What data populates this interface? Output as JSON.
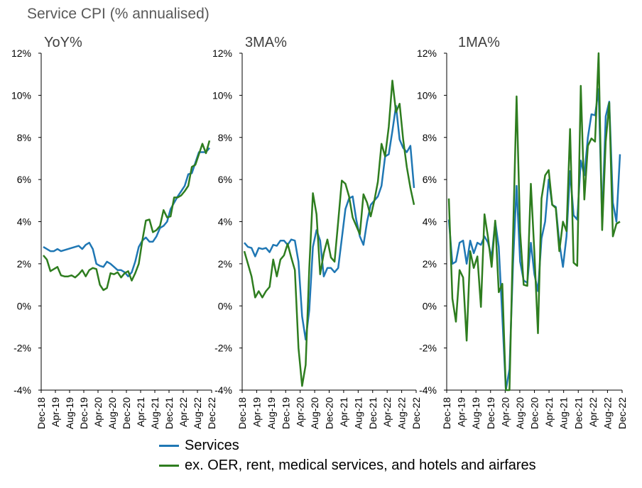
{
  "title": "Service CPI (% annualised)",
  "legend": [
    {
      "name": "Services",
      "color": "#1f77b4"
    },
    {
      "name": "ex. OER, rent, medical services, and hotels and airfares",
      "color": "#2e7d1f"
    }
  ],
  "chart_data": [
    {
      "type": "line",
      "title": "YoY%",
      "x_ticks": [
        "Dec-18",
        "Apr-19",
        "Aug-19",
        "Dec-19",
        "Apr-20",
        "Aug-20",
        "Dec-20",
        "Apr-21",
        "Aug-21",
        "Dec-21",
        "Apr-22",
        "Aug-22",
        "Dec-22"
      ],
      "y_ticks": [
        "12%",
        "10%",
        "8%",
        "6%",
        "4%",
        "2%",
        "0%",
        "-2%",
        "-4%"
      ],
      "ylim": [
        -4,
        12
      ],
      "grid": false,
      "series": [
        {
          "name": "Services",
          "color": "#1f77b4",
          "values": [
            2.8,
            2.7,
            2.6,
            2.6,
            2.7,
            2.6,
            2.65,
            2.7,
            2.75,
            2.8,
            2.85,
            2.7,
            2.9,
            3.0,
            2.7,
            2.0,
            1.9,
            1.85,
            2.1,
            2.0,
            1.85,
            1.7,
            1.7,
            1.6,
            1.4,
            1.6,
            2.1,
            2.8,
            3.1,
            3.25,
            3.05,
            3.05,
            3.3,
            3.7,
            3.8,
            4.0,
            4.6,
            4.9,
            5.2,
            5.45,
            5.7,
            6.25,
            6.3,
            6.8,
            7.3,
            7.3,
            7.3,
            7.5
          ]
        },
        {
          "name": "ex. OER, rent, medical services, and hotels and airfares",
          "color": "#2e7d1f",
          "values": [
            2.4,
            2.2,
            1.65,
            1.75,
            1.85,
            1.45,
            1.4,
            1.4,
            1.45,
            1.35,
            1.5,
            1.7,
            1.4,
            1.7,
            1.8,
            1.75,
            1.0,
            0.75,
            0.85,
            1.55,
            1.5,
            1.6,
            1.35,
            1.55,
            1.65,
            1.2,
            1.55,
            2.0,
            3.1,
            4.05,
            4.1,
            3.5,
            3.6,
            3.8,
            4.55,
            4.2,
            4.25,
            5.15,
            5.15,
            5.25,
            5.45,
            5.7,
            6.6,
            6.7,
            7.2,
            7.7,
            7.25,
            7.85
          ]
        }
      ]
    },
    {
      "type": "line",
      "title": "3MA%",
      "x_ticks": [
        "Dec-18",
        "Apr-19",
        "Aug-19",
        "Dec-19",
        "Apr-20",
        "Aug-20",
        "Dec-20",
        "Apr-21",
        "Aug-21",
        "Dec-21",
        "Apr-22",
        "Aug-22",
        "Dec-22"
      ],
      "y_ticks": [
        "12%",
        "10%",
        "8%",
        "6%",
        "4%",
        "2%",
        "0%",
        "-2%",
        "-4%"
      ],
      "ylim": [
        -4,
        12
      ],
      "grid": false,
      "series": [
        {
          "name": "Services",
          "color": "#1f77b4",
          "values": [
            3.0,
            2.8,
            2.75,
            2.35,
            2.75,
            2.7,
            2.75,
            2.55,
            2.9,
            2.85,
            3.1,
            3.1,
            2.9,
            3.15,
            3.1,
            2.1,
            -0.5,
            -1.6,
            -0.2,
            2.8,
            3.6,
            3.1,
            1.4,
            1.8,
            1.8,
            1.6,
            1.8,
            3.2,
            4.6,
            5.1,
            5.2,
            4.1,
            3.3,
            2.9,
            4.0,
            4.8,
            5.0,
            5.2,
            5.7,
            7.1,
            7.2,
            8.3,
            9.5,
            7.9,
            7.5,
            7.3,
            7.6,
            5.6
          ]
        },
        {
          "name": "ex. OER, rent, medical services, and hotels and airfares",
          "color": "#2e7d1f",
          "values": [
            2.6,
            2.0,
            1.4,
            0.4,
            0.7,
            0.4,
            0.7,
            0.9,
            2.2,
            1.4,
            2.2,
            2.4,
            2.95,
            2.3,
            1.7,
            -2.0,
            -3.8,
            -2.8,
            1.8,
            5.35,
            4.35,
            1.5,
            2.5,
            3.15,
            2.3,
            2.1,
            4.0,
            5.95,
            5.8,
            5.2,
            4.2,
            3.8,
            3.4,
            5.3,
            4.9,
            4.25,
            5.0,
            5.9,
            7.7,
            7.1,
            8.5,
            10.7,
            9.2,
            9.6,
            7.9,
            6.6,
            5.6,
            4.8
          ]
        }
      ]
    },
    {
      "type": "line",
      "title": "1MA%",
      "x_ticks": [
        "Dec-18",
        "Apr-19",
        "Aug-19",
        "Dec-19",
        "Apr-20",
        "Aug-20",
        "Dec-20",
        "Apr-21",
        "Aug-21",
        "Dec-21",
        "Apr-22",
        "Aug-22",
        "Dec-22"
      ],
      "y_ticks": [
        "12%",
        "10%",
        "8%",
        "6%",
        "4%",
        "2%",
        "0%",
        "-2%",
        "-4%"
      ],
      "ylim": [
        -4,
        12
      ],
      "grid": false,
      "series": [
        {
          "name": "Services",
          "color": "#1f77b4",
          "values": [
            4.1,
            2.0,
            2.1,
            3.0,
            3.1,
            2.0,
            3.1,
            2.5,
            3.0,
            2.9,
            3.3,
            3.0,
            2.3,
            4.0,
            2.8,
            -0.5,
            -4.0,
            -3.0,
            2.0,
            5.7,
            2.1,
            1.2,
            1.1,
            3.0,
            1.5,
            0.7,
            3.2,
            4.0,
            6.0,
            4.8,
            4.7,
            3.0,
            1.85,
            3.3,
            6.4,
            4.3,
            4.1,
            6.9,
            6.2,
            8.0,
            9.1,
            9.05,
            10.3,
            4.0,
            9.0,
            9.7,
            4.9,
            4.0,
            7.2
          ]
        },
        {
          "name": "ex. OER, rent, medical services, and hotels and airfares",
          "color": "#2e7d1f",
          "values": [
            5.1,
            0.35,
            -0.75,
            1.7,
            1.35,
            -1.65,
            2.6,
            1.8,
            2.35,
            -0.05,
            4.35,
            3.25,
            1.85,
            4.05,
            0.65,
            1.05,
            -4.05,
            -4.1,
            3.3,
            9.95,
            3.5,
            1.0,
            0.95,
            5.8,
            2.5,
            -1.3,
            5.1,
            6.2,
            6.45,
            4.8,
            4.65,
            2.6,
            4.0,
            3.55,
            8.4,
            2.05,
            1.9,
            10.45,
            5.05,
            7.6,
            7.95,
            7.8,
            12.1,
            3.6,
            7.8,
            9.65,
            3.3,
            3.9,
            4.0
          ]
        }
      ]
    }
  ]
}
